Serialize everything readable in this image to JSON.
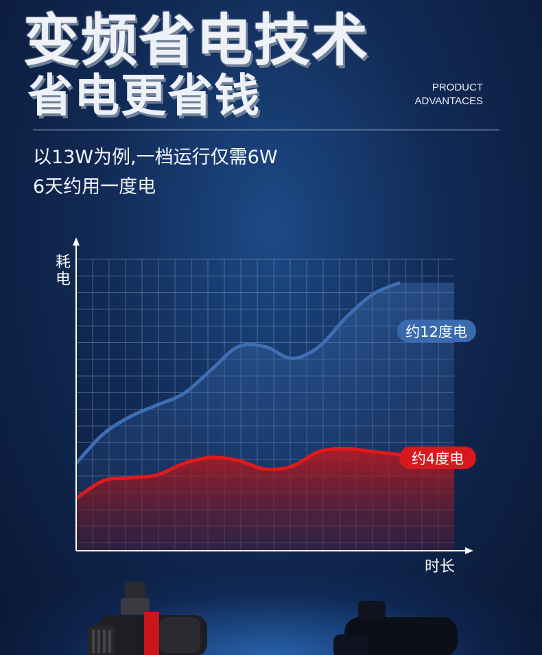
{
  "header": {
    "title_line1": "变频省电技术",
    "title_line2": "省电更省钱",
    "tag_line1": "PRODUCT",
    "tag_line2": "ADVANTACES"
  },
  "subtitle": {
    "line1": "以13W为例,一档运行仅需6W",
    "line2": "6天约用一度电"
  },
  "chart_data": {
    "type": "area",
    "ylabel": "耗电",
    "xlabel": "时长",
    "grid": true,
    "x": [
      0,
      1,
      2,
      3,
      4,
      5,
      6,
      7,
      8,
      9,
      10,
      11,
      12
    ],
    "series": [
      {
        "name": "约12度电",
        "color": "#3f6eb3",
        "values": [
          0.3,
          0.4,
          0.46,
          0.5,
          0.54,
          0.62,
          0.7,
          0.7,
          0.66,
          0.7,
          0.8,
          0.88,
          0.92
        ]
      },
      {
        "name": "约4度电",
        "color": "#e01a1a",
        "values": [
          0.18,
          0.24,
          0.25,
          0.26,
          0.3,
          0.32,
          0.31,
          0.28,
          0.29,
          0.34,
          0.35,
          0.34,
          0.33
        ]
      }
    ]
  },
  "colors": {
    "background": "#112a55",
    "blue_series": "#3f6eb3",
    "red_series": "#e01a1a"
  }
}
